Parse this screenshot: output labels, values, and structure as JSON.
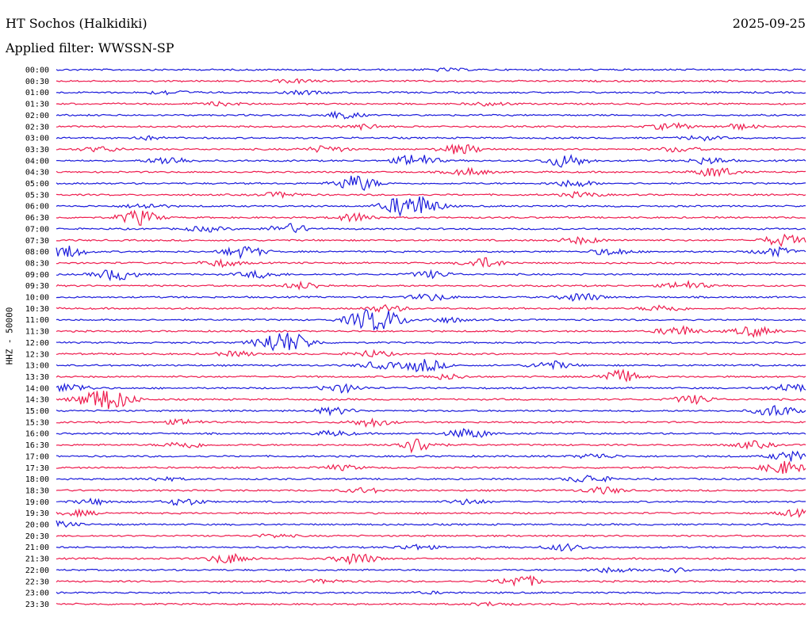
{
  "header": {
    "station": "HT Sochos (Halkidiki)",
    "date": "2025-09-25",
    "filter": "Applied filter: WWSSN-SP"
  },
  "chart_data": {
    "type": "line",
    "title": "HT Sochos (Halkidiki)",
    "ylabel": "HHZ - 50000",
    "trace_colors": [
      "#1a1adb",
      "#ee1c4e"
    ],
    "rows": [
      {
        "label": "00:00",
        "bursts": [
          {
            "t": 0.52,
            "a": 1.5
          }
        ]
      },
      {
        "label": "00:30",
        "bursts": [
          {
            "t": 0.32,
            "a": 2
          }
        ]
      },
      {
        "label": "01:00",
        "bursts": [
          {
            "t": 0.15,
            "a": 2.5
          },
          {
            "t": 0.33,
            "a": 2
          }
        ]
      },
      {
        "label": "01:30",
        "bursts": [
          {
            "t": 0.22,
            "a": 2
          },
          {
            "t": 0.58,
            "a": 2
          }
        ]
      },
      {
        "label": "02:00",
        "bursts": [
          {
            "t": 0.38,
            "a": 4
          }
        ]
      },
      {
        "label": "02:30",
        "bursts": [
          {
            "t": 0.41,
            "a": 3
          },
          {
            "t": 0.82,
            "a": 4
          },
          {
            "t": 0.91,
            "a": 3
          }
        ]
      },
      {
        "label": "03:00",
        "bursts": [
          {
            "t": 0.12,
            "a": 2
          },
          {
            "t": 0.86,
            "a": 2.5
          }
        ]
      },
      {
        "label": "03:30",
        "bursts": [
          {
            "t": 0.06,
            "a": 3
          },
          {
            "t": 0.36,
            "a": 4
          },
          {
            "t": 0.54,
            "a": 6
          },
          {
            "t": 0.83,
            "a": 3
          }
        ]
      },
      {
        "label": "04:00",
        "bursts": [
          {
            "t": 0.15,
            "a": 5
          },
          {
            "t": 0.48,
            "a": 8
          },
          {
            "t": 0.68,
            "a": 8
          },
          {
            "t": 0.87,
            "a": 4
          }
        ]
      },
      {
        "label": "04:30",
        "bursts": [
          {
            "t": 0.55,
            "a": 4
          },
          {
            "t": 0.88,
            "a": 6
          }
        ]
      },
      {
        "label": "05:00",
        "bursts": [
          {
            "t": 0.4,
            "a": 10
          },
          {
            "t": 0.69,
            "a": 4
          }
        ]
      },
      {
        "label": "05:30",
        "bursts": [
          {
            "t": 0.3,
            "a": 3
          },
          {
            "t": 0.7,
            "a": 3
          }
        ]
      },
      {
        "label": "06:00",
        "bursts": [
          {
            "t": 0.46,
            "a": 10
          },
          {
            "t": 0.49,
            "a": 9
          },
          {
            "t": 0.12,
            "a": 3
          }
        ]
      },
      {
        "label": "06:30",
        "bursts": [
          {
            "t": 0.11,
            "a": 9
          },
          {
            "t": 0.4,
            "a": 5
          }
        ]
      },
      {
        "label": "07:00",
        "bursts": [
          {
            "t": 0.31,
            "a": 6
          },
          {
            "t": 0.2,
            "a": 3
          }
        ]
      },
      {
        "label": "07:30",
        "bursts": [
          {
            "t": 0.97,
            "a": 7
          },
          {
            "t": 0.7,
            "a": 4
          }
        ]
      },
      {
        "label": "08:00",
        "bursts": [
          {
            "t": 0.01,
            "a": 8
          },
          {
            "t": 0.25,
            "a": 7
          },
          {
            "t": 0.74,
            "a": 4
          },
          {
            "t": 0.96,
            "a": 5
          }
        ]
      },
      {
        "label": "08:30",
        "bursts": [
          {
            "t": 0.57,
            "a": 6
          },
          {
            "t": 0.22,
            "a": 4
          }
        ]
      },
      {
        "label": "09:00",
        "bursts": [
          {
            "t": 0.08,
            "a": 7
          },
          {
            "t": 0.27,
            "a": 4
          },
          {
            "t": 0.5,
            "a": 4
          }
        ]
      },
      {
        "label": "09:30",
        "bursts": [
          {
            "t": 0.33,
            "a": 4
          },
          {
            "t": 0.84,
            "a": 5
          }
        ]
      },
      {
        "label": "10:00",
        "bursts": [
          {
            "t": 0.5,
            "a": 4
          },
          {
            "t": 0.7,
            "a": 5
          }
        ]
      },
      {
        "label": "10:30",
        "bursts": [
          {
            "t": 0.44,
            "a": 4
          },
          {
            "t": 0.81,
            "a": 4
          }
        ]
      },
      {
        "label": "11:00",
        "bursts": [
          {
            "t": 0.41,
            "a": 9
          },
          {
            "t": 0.44,
            "a": 10
          },
          {
            "t": 0.52,
            "a": 3
          }
        ]
      },
      {
        "label": "11:30",
        "bursts": [
          {
            "t": 0.83,
            "a": 6
          },
          {
            "t": 0.93,
            "a": 6
          }
        ]
      },
      {
        "label": "12:00",
        "bursts": [
          {
            "t": 0.29,
            "a": 10
          },
          {
            "t": 0.32,
            "a": 8
          }
        ]
      },
      {
        "label": "12:30",
        "bursts": [
          {
            "t": 0.42,
            "a": 4
          },
          {
            "t": 0.24,
            "a": 3
          }
        ]
      },
      {
        "label": "13:00",
        "bursts": [
          {
            "t": 0.49,
            "a": 8
          },
          {
            "t": 0.43,
            "a": 4
          },
          {
            "t": 0.66,
            "a": 5
          }
        ]
      },
      {
        "label": "13:30",
        "bursts": [
          {
            "t": 0.75,
            "a": 8
          },
          {
            "t": 0.52,
            "a": 3
          }
        ]
      },
      {
        "label": "14:00",
        "bursts": [
          {
            "t": 0.02,
            "a": 5
          },
          {
            "t": 0.38,
            "a": 5
          },
          {
            "t": 0.98,
            "a": 5
          }
        ]
      },
      {
        "label": "14:30",
        "bursts": [
          {
            "t": 0.05,
            "a": 9
          },
          {
            "t": 0.08,
            "a": 9
          },
          {
            "t": 0.85,
            "a": 5
          }
        ]
      },
      {
        "label": "15:00",
        "bursts": [
          {
            "t": 0.37,
            "a": 4
          },
          {
            "t": 0.96,
            "a": 7
          }
        ]
      },
      {
        "label": "15:30",
        "bursts": [
          {
            "t": 0.42,
            "a": 5
          },
          {
            "t": 0.17,
            "a": 3
          }
        ]
      },
      {
        "label": "16:00",
        "bursts": [
          {
            "t": 0.55,
            "a": 6
          },
          {
            "t": 0.37,
            "a": 3
          }
        ]
      },
      {
        "label": "16:30",
        "bursts": [
          {
            "t": 0.48,
            "a": 9
          },
          {
            "t": 0.17,
            "a": 4
          },
          {
            "t": 0.93,
            "a": 4
          }
        ]
      },
      {
        "label": "17:00",
        "bursts": [
          {
            "t": 0.98,
            "a": 6
          },
          {
            "t": 0.72,
            "a": 3
          }
        ]
      },
      {
        "label": "17:30",
        "bursts": [
          {
            "t": 0.97,
            "a": 8
          },
          {
            "t": 0.38,
            "a": 3
          }
        ]
      },
      {
        "label": "18:00",
        "bursts": [
          {
            "t": 0.71,
            "a": 5
          },
          {
            "t": 0.14,
            "a": 2
          }
        ]
      },
      {
        "label": "18:30",
        "bursts": [
          {
            "t": 0.73,
            "a": 4
          },
          {
            "t": 0.41,
            "a": 3
          }
        ]
      },
      {
        "label": "19:00",
        "bursts": [
          {
            "t": 0.17,
            "a": 4
          },
          {
            "t": 0.05,
            "a": 3
          },
          {
            "t": 0.55,
            "a": 3
          }
        ]
      },
      {
        "label": "19:30",
        "bursts": [
          {
            "t": 0.99,
            "a": 4
          },
          {
            "t": 0.03,
            "a": 3
          }
        ]
      },
      {
        "label": "20:00",
        "bursts": [
          {
            "t": 0.0,
            "a": 4
          }
        ]
      },
      {
        "label": "20:30",
        "bursts": [
          {
            "t": 0.29,
            "a": 2
          }
        ]
      },
      {
        "label": "21:00",
        "bursts": [
          {
            "t": 0.68,
            "a": 4
          },
          {
            "t": 0.48,
            "a": 3
          }
        ]
      },
      {
        "label": "21:30",
        "bursts": [
          {
            "t": 0.23,
            "a": 6
          },
          {
            "t": 0.4,
            "a": 7
          }
        ]
      },
      {
        "label": "22:00",
        "bursts": [
          {
            "t": 0.74,
            "a": 3
          },
          {
            "t": 0.82,
            "a": 3
          }
        ]
      },
      {
        "label": "22:30",
        "bursts": [
          {
            "t": 0.62,
            "a": 7
          },
          {
            "t": 0.36,
            "a": 2
          }
        ]
      },
      {
        "label": "23:00",
        "bursts": [
          {
            "t": 0.5,
            "a": 1
          }
        ]
      },
      {
        "label": "23:30",
        "bursts": [
          {
            "t": 0.58,
            "a": 2
          }
        ]
      }
    ]
  }
}
